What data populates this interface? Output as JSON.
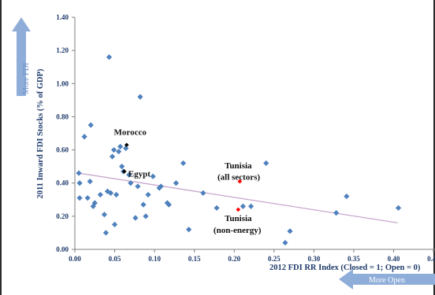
{
  "chart_data": {
    "type": "scatter",
    "xlabel": "2012 FDI RR Index (Closed = 1; Open = 0)",
    "ylabel": "2011 Inward FDI Stocks (% of GDP)",
    "xlim": [
      0,
      0.45
    ],
    "ylim": [
      0,
      1.4
    ],
    "xticks": [
      "0.00",
      "0.05",
      "0.10",
      "0.15",
      "0.20",
      "0.25",
      "0.30",
      "0.35",
      "0.40",
      "0.45"
    ],
    "yticks": [
      "0.00",
      "0.20",
      "0.40",
      "0.60",
      "0.80",
      "1.00",
      "1.20",
      "1.40"
    ],
    "grid": false,
    "series": [
      {
        "color": "#4f81bd",
        "points": [
          [
            0.005,
            0.46
          ],
          [
            0.006,
            0.4
          ],
          [
            0.006,
            0.31
          ],
          [
            0.012,
            0.68
          ],
          [
            0.016,
            0.31
          ],
          [
            0.019,
            0.41
          ],
          [
            0.02,
            0.75
          ],
          [
            0.023,
            0.26
          ],
          [
            0.025,
            0.28
          ],
          [
            0.032,
            0.33
          ],
          [
            0.037,
            0.21
          ],
          [
            0.039,
            0.1
          ],
          [
            0.041,
            0.35
          ],
          [
            0.043,
            1.16
          ],
          [
            0.045,
            0.34
          ],
          [
            0.047,
            0.56
          ],
          [
            0.049,
            0.6
          ],
          [
            0.05,
            0.15
          ],
          [
            0.052,
            0.33
          ],
          [
            0.055,
            0.59
          ],
          [
            0.057,
            0.62
          ],
          [
            0.059,
            0.5
          ],
          [
            0.061,
            0.47
          ],
          [
            0.064,
            0.61
          ],
          [
            0.068,
            0.45
          ],
          [
            0.07,
            0.4
          ],
          [
            0.076,
            0.19
          ],
          [
            0.079,
            0.38
          ],
          [
            0.082,
            0.92
          ],
          [
            0.086,
            0.27
          ],
          [
            0.089,
            0.2
          ],
          [
            0.092,
            0.33
          ],
          [
            0.098,
            0.44
          ],
          [
            0.106,
            0.37
          ],
          [
            0.108,
            0.38
          ],
          [
            0.116,
            0.28
          ],
          [
            0.118,
            0.27
          ],
          [
            0.127,
            0.4
          ],
          [
            0.136,
            0.52
          ],
          [
            0.143,
            0.12
          ],
          [
            0.161,
            0.34
          ],
          [
            0.178,
            0.25
          ],
          [
            0.211,
            0.26
          ],
          [
            0.221,
            0.26
          ],
          [
            0.24,
            0.52
          ],
          [
            0.264,
            0.04
          ],
          [
            0.27,
            0.11
          ],
          [
            0.328,
            0.22
          ],
          [
            0.341,
            0.32
          ],
          [
            0.406,
            0.25
          ]
        ]
      },
      {
        "color": "#000000",
        "points": [
          [
            0.065,
            0.63
          ],
          [
            0.062,
            0.47
          ]
        ]
      },
      {
        "color": "#ff0000",
        "points": [
          [
            0.207,
            0.41
          ],
          [
            0.205,
            0.24
          ]
        ]
      }
    ],
    "trendline": {
      "color": "#c9a6cf",
      "from": [
        0.005,
        0.46
      ],
      "to": [
        0.405,
        0.16
      ]
    },
    "annotations": [
      {
        "text": "Morocco",
        "at": [
          0.049,
          0.69
        ]
      },
      {
        "text": "Egypt",
        "at": [
          0.067,
          0.44
        ]
      },
      {
        "text": "Tunisia",
        "at": [
          0.188,
          0.49
        ]
      },
      {
        "text": "(all sectors)",
        "at": [
          0.179,
          0.42
        ]
      },
      {
        "text": "Tunisia",
        "at": [
          0.188,
          0.17
        ]
      },
      {
        "text": "(non-energy)",
        "at": [
          0.174,
          0.1
        ]
      }
    ],
    "hints": {
      "y": "More FDI",
      "x": "More Open"
    }
  }
}
